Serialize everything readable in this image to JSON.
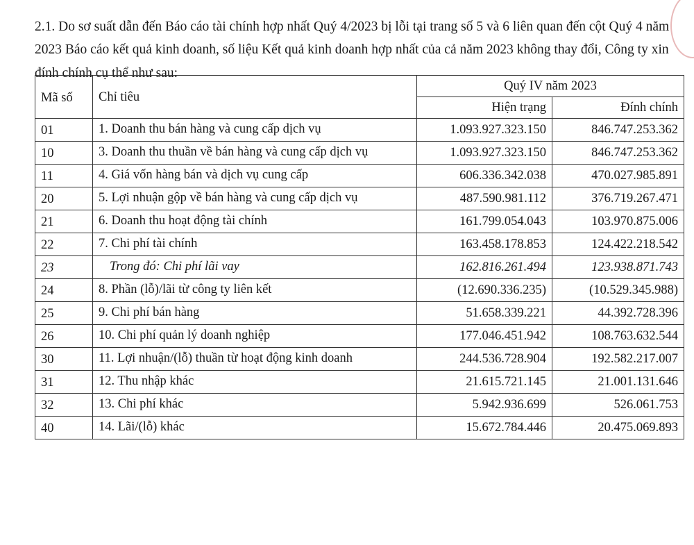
{
  "intro": "2.1. Do sơ suất dẫn đến Báo cáo tài chính hợp nhất Quý 4/2023 bị lỗi tại trang số 5 và 6 liên quan đến cột Quý 4 năm 2023 Báo cáo kết quả kinh doanh, số liệu Kết quả kinh doanh hợp nhất của cả năm 2023 không thay đổi, Công ty xin đính chính cụ thể như sau:",
  "table": {
    "headers": {
      "code": "Mã số",
      "item": "Chỉ tiêu",
      "period": "Quý IV năm 2023",
      "current": "Hiện trạng",
      "corrected": "Đính chính"
    },
    "rows": [
      {
        "code": "01",
        "item": "1. Doanh thu bán hàng và cung cấp dịch vụ",
        "current": "1.093.927.323.150",
        "corrected": "846.747.253.362"
      },
      {
        "code": "10",
        "item": "3. Doanh thu thuần về bán hàng và cung cấp dịch vụ",
        "current": "1.093.927.323.150",
        "corrected": "846.747.253.362"
      },
      {
        "code": "11",
        "item": "4. Giá vốn hàng bán và dịch vụ cung cấp",
        "current": "606.336.342.038",
        "corrected": "470.027.985.891"
      },
      {
        "code": "20",
        "item": "5. Lợi nhuận gộp về bán hàng và cung cấp dịch vụ",
        "current": "487.590.981.112",
        "corrected": "376.719.267.471"
      },
      {
        "code": "21",
        "item": "6. Doanh thu hoạt động tài chính",
        "current": "161.799.054.043",
        "corrected": "103.970.875.006"
      },
      {
        "code": "22",
        "item": "7. Chi phí tài chính",
        "current": "163.458.178.853",
        "corrected": "124.422.218.542"
      },
      {
        "code": "23",
        "item": "Trong đó: Chi phí lãi vay",
        "current": "162.816.261.494",
        "corrected": "123.938.871.743",
        "italic": true
      },
      {
        "code": "24",
        "item": "8. Phần (lỗ)/lãi từ công ty liên kết",
        "current": "(12.690.336.235)",
        "corrected": "(10.529.345.988)"
      },
      {
        "code": "25",
        "item": "9. Chi phí bán hàng",
        "current": "51.658.339.221",
        "corrected": "44.392.728.396"
      },
      {
        "code": "26",
        "item": "10. Chi phí quản lý doanh nghiệp",
        "current": "177.046.451.942",
        "corrected": "108.763.632.544"
      },
      {
        "code": "30",
        "item": "11. Lợi nhuận/(lỗ) thuần từ hoạt động kinh doanh",
        "current": "244.536.728.904",
        "corrected": "192.582.217.007"
      },
      {
        "code": "31",
        "item": "12. Thu nhập khác",
        "current": "21.615.721.145",
        "corrected": "21.001.131.646"
      },
      {
        "code": "32",
        "item": "13. Chi phí khác",
        "current": "5.942.936.699",
        "corrected": "526.061.753"
      },
      {
        "code": "40",
        "item": "14. Lãi/(lỗ) khác",
        "current": "15.672.784.446",
        "corrected": "20.475.069.893"
      }
    ]
  }
}
